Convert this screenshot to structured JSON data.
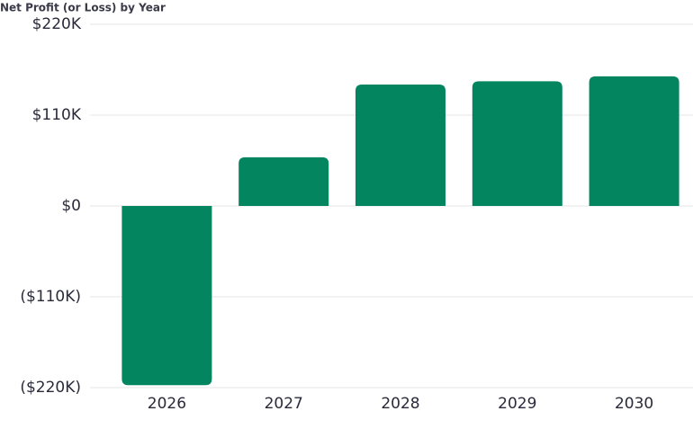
{
  "chart_data": {
    "type": "bar",
    "title": "Net Profit (or Loss) by Year",
    "categories": [
      "2026",
      "2027",
      "2028",
      "2029",
      "2030"
    ],
    "values": [
      -217000,
      59000,
      147000,
      151000,
      157000
    ],
    "color": "#038660",
    "ylim": [
      -220000,
      220000
    ],
    "yticks": [
      {
        "value": -220000,
        "label": "($220K)"
      },
      {
        "value": -110000,
        "label": "($110K)"
      },
      {
        "value": 0,
        "label": "$0"
      },
      {
        "value": 110000,
        "label": "$110K"
      },
      {
        "value": 220000,
        "label": "$220K"
      }
    ],
    "grid": true
  }
}
